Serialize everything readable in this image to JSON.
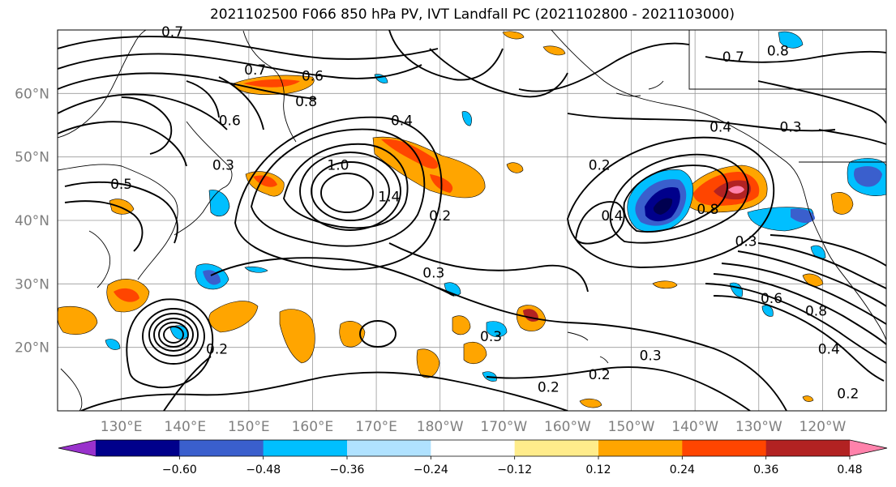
{
  "title": "2021102500 F066 850 hPa PV, IVT Landfall PC (2021102800 - 2021103000)",
  "lat_labels": [
    "60°N",
    "50°N",
    "40°N",
    "30°N",
    "20°N"
  ],
  "lon_labels": [
    "130°E",
    "140°E",
    "150°E",
    "160°E",
    "170°E",
    "180°W",
    "170°W",
    "160°W",
    "150°W",
    "140°W",
    "130°W",
    "120°W"
  ],
  "colorbar": {
    "ticks": [
      "−0.60",
      "−0.48",
      "−0.36",
      "−0.24",
      "−0.12",
      "0.12",
      "0.24",
      "0.36",
      "0.48",
      "0.60"
    ],
    "colors": [
      "#9932cc",
      "#00008b",
      "#3a5fcd",
      "#00bfff",
      "#b0e2ff",
      "#ffffff",
      "#ffec8b",
      "#ffa500",
      "#ff4500",
      "#b22222",
      "#ff82ab"
    ]
  },
  "contour_labels": [
    {
      "text": "0.7",
      "lon": 138,
      "lat": 69
    },
    {
      "text": "0.7",
      "lon": 151,
      "lat": 63
    },
    {
      "text": "0.6",
      "lon": 160,
      "lat": 62
    },
    {
      "text": "0.8",
      "lon": 159,
      "lat": 58
    },
    {
      "text": "0.6",
      "lon": 147,
      "lat": 55
    },
    {
      "text": "0.4",
      "lon": 174,
      "lat": 55
    },
    {
      "text": "0.3",
      "lon": 146,
      "lat": 48
    },
    {
      "text": "0.5",
      "lon": 130,
      "lat": 45
    },
    {
      "text": "1.0",
      "lon": 164,
      "lat": 48
    },
    {
      "text": "1.4",
      "lon": 172,
      "lat": 43
    },
    {
      "text": "0.2",
      "lon": 180,
      "lat": 40
    },
    {
      "text": "0.3",
      "lon": 179,
      "lat": 31
    },
    {
      "text": "0.4",
      "lon": 207,
      "lat": 40
    },
    {
      "text": "0.2",
      "lon": 205,
      "lat": 48
    },
    {
      "text": "0.4",
      "lon": 224,
      "lat": 54
    },
    {
      "text": "0.8",
      "lon": 222,
      "lat": 41
    },
    {
      "text": "0.7",
      "lon": 226,
      "lat": 65
    },
    {
      "text": "0.8",
      "lon": 233,
      "lat": 66
    },
    {
      "text": "0.3",
      "lon": 235,
      "lat": 54
    },
    {
      "text": "0.3",
      "lon": 228,
      "lat": 36
    },
    {
      "text": "0.6",
      "lon": 232,
      "lat": 27
    },
    {
      "text": "0.8",
      "lon": 239,
      "lat": 25
    },
    {
      "text": "0.3",
      "lon": 188,
      "lat": 21
    },
    {
      "text": "0.3",
      "lon": 213,
      "lat": 18
    },
    {
      "text": "0.2",
      "lon": 197,
      "lat": 13
    },
    {
      "text": "0.2",
      "lon": 205,
      "lat": 15
    },
    {
      "text": "0.4",
      "lon": 241,
      "lat": 19
    },
    {
      "text": "0.2",
      "lon": 145,
      "lat": 19
    },
    {
      "text": "0.2",
      "lon": 244,
      "lat": 12
    }
  ]
}
